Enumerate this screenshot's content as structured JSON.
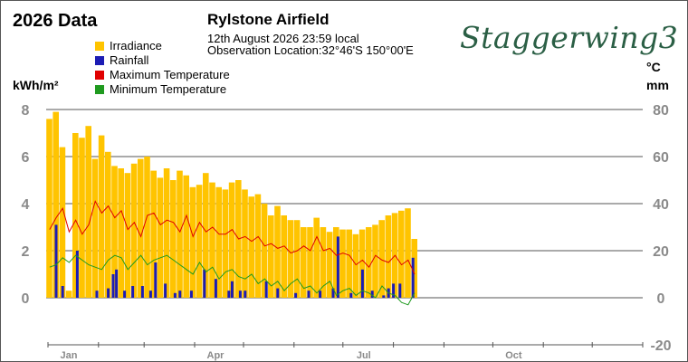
{
  "header": {
    "title": "2026 Data",
    "station": "Rylstone Airfield",
    "timestamp": "12th August 2026  23:59 local",
    "location": "Observation Location:32°46'S 150°00'E",
    "brand": "Staggerwing3",
    "unit_left": "kWh/m²",
    "unit_right_temp": "°C",
    "unit_right_rain": "mm"
  },
  "colors": {
    "irradiance": "#ffc400",
    "rainfall": "#1c1cb4",
    "max_temp": "#e00000",
    "min_temp": "#1f9a1f",
    "grid": "#555555",
    "tick_text": "#8a8a8a"
  },
  "chart_data": {
    "type": "bar",
    "legend": [
      "Irradiance",
      "Rainfall",
      "Maximum Temperature",
      "Minimum Temperature"
    ],
    "legend_placement": "top-left",
    "y_left": {
      "label": "kWh/m²",
      "ticks": [
        0,
        2,
        4,
        6,
        8
      ],
      "range": [
        0,
        8
      ]
    },
    "y_right": {
      "labels": [
        "°C",
        "mm"
      ],
      "ticks": [
        -20,
        0,
        20,
        40,
        60,
        80
      ],
      "range": [
        -20,
        80
      ]
    },
    "x_month_labels": [
      "Jan",
      "Apr",
      "Jul",
      "Oct"
    ],
    "x_month_days": [
      15,
      105,
      196,
      288
    ],
    "x_month_boundaries": [
      0,
      31,
      59,
      90,
      120,
      151,
      181,
      212,
      243,
      273,
      304,
      334,
      365
    ],
    "grid_horizontal": true,
    "series": [
      {
        "name": "Irradiance",
        "x": [
          1,
          5,
          9,
          13,
          17,
          21,
          25,
          29,
          33,
          37,
          41,
          45,
          49,
          53,
          57,
          61,
          65,
          69,
          73,
          77,
          81,
          85,
          89,
          93,
          97,
          101,
          105,
          109,
          113,
          117,
          121,
          125,
          129,
          133,
          137,
          141,
          145,
          149,
          153,
          157,
          161,
          165,
          169,
          173,
          177,
          181,
          185,
          189,
          193,
          197,
          201,
          205,
          209,
          213,
          217,
          221,
          225
        ],
        "values": [
          7.6,
          7.9,
          6.4,
          0.3,
          7.0,
          6.8,
          7.3,
          5.9,
          6.9,
          6.2,
          5.6,
          5.5,
          5.3,
          5.7,
          5.9,
          6.0,
          5.4,
          5.1,
          5.5,
          5.0,
          5.4,
          5.2,
          4.7,
          4.8,
          5.3,
          4.9,
          4.7,
          4.6,
          4.9,
          5.0,
          4.6,
          4.3,
          4.4,
          4.0,
          3.5,
          3.9,
          3.5,
          3.3,
          3.3,
          3.0,
          3.0,
          3.4,
          3.0,
          2.8,
          3.0,
          2.9,
          2.9,
          2.7,
          2.9,
          3.0,
          3.1,
          3.3,
          3.5,
          3.6,
          3.7,
          3.8,
          2.5
        ]
      },
      {
        "name": "Rainfall",
        "x": [
          5,
          9,
          18,
          30,
          37,
          40,
          42,
          47,
          52,
          58,
          63,
          66,
          72,
          78,
          81,
          88,
          96,
          103,
          111,
          113,
          118,
          121,
          134,
          141,
          152,
          160,
          167,
          175,
          178,
          186,
          193,
          199,
          206,
          209,
          212,
          216,
          224
        ],
        "values": [
          31,
          5,
          20,
          3,
          4,
          10,
          12,
          3,
          5,
          5,
          3,
          15,
          6,
          2,
          3,
          3,
          12,
          8,
          3,
          7,
          3,
          3,
          7,
          4,
          2,
          3,
          3,
          4,
          26,
          2,
          12,
          3,
          1,
          4,
          6,
          6,
          17
        ]
      },
      {
        "name": "Maximum Temperature",
        "x": [
          1,
          5,
          9,
          13,
          17,
          21,
          25,
          29,
          33,
          37,
          41,
          45,
          49,
          53,
          57,
          61,
          65,
          69,
          73,
          77,
          81,
          85,
          89,
          93,
          97,
          101,
          105,
          109,
          113,
          117,
          121,
          125,
          129,
          133,
          137,
          141,
          145,
          149,
          153,
          157,
          161,
          165,
          169,
          173,
          177,
          181,
          185,
          189,
          193,
          197,
          201,
          205,
          209,
          213,
          217,
          221,
          225
        ],
        "values": [
          29,
          34,
          38,
          28,
          33,
          27,
          31,
          41,
          36,
          39,
          34,
          37,
          29,
          32,
          26,
          35,
          36,
          31,
          33,
          32,
          28,
          35,
          26,
          32,
          28,
          30,
          27,
          27,
          29,
          25,
          26,
          24,
          26,
          22,
          23,
          21,
          22,
          19,
          20,
          22,
          20,
          26,
          20,
          21,
          18,
          19,
          18,
          14,
          16,
          13,
          18,
          16,
          15,
          18,
          14,
          16,
          10
        ]
      },
      {
        "name": "Minimum Temperature",
        "x": [
          1,
          5,
          9,
          13,
          17,
          21,
          25,
          29,
          33,
          37,
          41,
          45,
          49,
          53,
          57,
          61,
          65,
          69,
          73,
          77,
          81,
          85,
          89,
          93,
          97,
          101,
          105,
          109,
          113,
          117,
          121,
          125,
          129,
          133,
          137,
          141,
          145,
          149,
          153,
          157,
          161,
          165,
          169,
          173,
          177,
          181,
          185,
          189,
          193,
          197,
          201,
          205,
          209,
          213,
          217,
          221,
          225
        ],
        "values": [
          13,
          14,
          17,
          15,
          18,
          16,
          14,
          13,
          12,
          16,
          18,
          17,
          12,
          15,
          18,
          14,
          16,
          17,
          18,
          16,
          14,
          12,
          10,
          15,
          11,
          13,
          8,
          11,
          12,
          9,
          8,
          10,
          6,
          8,
          5,
          7,
          3,
          6,
          8,
          4,
          5,
          2,
          5,
          7,
          1,
          3,
          4,
          1,
          3,
          2,
          0,
          5,
          2,
          1,
          -2,
          -3,
          2
        ]
      }
    ]
  }
}
